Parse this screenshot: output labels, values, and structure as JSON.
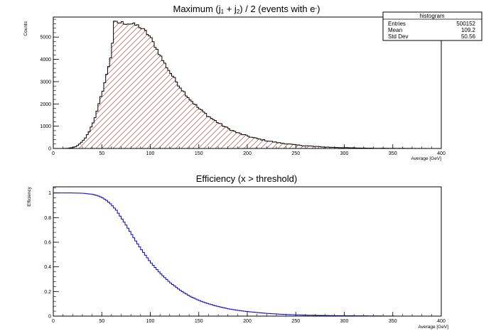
{
  "chart_data": [
    {
      "type": "histogram",
      "title_parts": [
        "Maximum (j",
        "1",
        " + j",
        "2",
        ") / 2 (events with e",
        "-",
        ")"
      ],
      "xlabel": "Average [GeV]",
      "ylabel": "Counts",
      "xlim": [
        0,
        400
      ],
      "ylim": [
        0,
        5900
      ],
      "x_ticks": [
        0,
        50,
        100,
        150,
        200,
        250,
        300,
        350,
        400
      ],
      "y_ticks": [
        0,
        1000,
        2000,
        3000,
        4000,
        5000
      ],
      "bin_width": 2,
      "fill": "hatched",
      "fill_color": "#b22222",
      "line_color": "#000000",
      "stats_box": {
        "title": "histogram",
        "rows": [
          {
            "label": "Entries",
            "value": "500152"
          },
          {
            "label": "Mean",
            "value": "109.2"
          },
          {
            "label": "Std Dev",
            "value": "50.56"
          }
        ]
      },
      "shape_points": [
        [
          10,
          0
        ],
        [
          16,
          10
        ],
        [
          20,
          40
        ],
        [
          25,
          120
        ],
        [
          30,
          300
        ],
        [
          35,
          600
        ],
        [
          40,
          1050
        ],
        [
          45,
          1650
        ],
        [
          50,
          2450
        ],
        [
          55,
          3300
        ],
        [
          60,
          4300
        ],
        [
          62,
          5200
        ],
        [
          63,
          5650
        ],
        [
          70,
          5650
        ],
        [
          80,
          5600
        ],
        [
          88,
          5500
        ],
        [
          95,
          5250
        ],
        [
          100,
          5000
        ],
        [
          105,
          4600
        ],
        [
          110,
          4200
        ],
        [
          115,
          3800
        ],
        [
          120,
          3450
        ],
        [
          130,
          2800
        ],
        [
          140,
          2250
        ],
        [
          150,
          1800
        ],
        [
          160,
          1450
        ],
        [
          170,
          1150
        ],
        [
          180,
          900
        ],
        [
          190,
          700
        ],
        [
          200,
          560
        ],
        [
          210,
          440
        ],
        [
          220,
          350
        ],
        [
          230,
          270
        ],
        [
          240,
          210
        ],
        [
          250,
          160
        ],
        [
          260,
          120
        ],
        [
          270,
          90
        ],
        [
          280,
          65
        ],
        [
          290,
          48
        ],
        [
          300,
          35
        ],
        [
          310,
          25
        ],
        [
          320,
          18
        ],
        [
          330,
          13
        ],
        [
          340,
          9
        ],
        [
          350,
          6
        ],
        [
          360,
          4
        ],
        [
          370,
          3
        ],
        [
          380,
          2
        ],
        [
          390,
          1
        ],
        [
          398,
          1
        ]
      ]
    },
    {
      "type": "line",
      "title": "Efficiency (x > threshold)",
      "xlabel": "Average [GeV]",
      "ylabel": "Efficiency",
      "xlim": [
        0,
        400
      ],
      "ylim": [
        0,
        1.05
      ],
      "x_ticks": [
        0,
        50,
        100,
        150,
        200,
        250,
        300,
        350,
        400
      ],
      "y_ticks": [
        0,
        0.2,
        0.4,
        0.6,
        0.8,
        1
      ],
      "y_tick_labels": [
        "0",
        "0.2",
        "0.4",
        "0.6",
        "0.8",
        "1"
      ],
      "line_color": "#0000cc",
      "x_max_drawn": 360,
      "points": [
        [
          0,
          1.0
        ],
        [
          20,
          1.0
        ],
        [
          30,
          0.998
        ],
        [
          40,
          0.99
        ],
        [
          45,
          0.98
        ],
        [
          50,
          0.965
        ],
        [
          55,
          0.94
        ],
        [
          60,
          0.905
        ],
        [
          65,
          0.86
        ],
        [
          70,
          0.8
        ],
        [
          75,
          0.74
        ],
        [
          80,
          0.675
        ],
        [
          85,
          0.61
        ],
        [
          90,
          0.55
        ],
        [
          95,
          0.495
        ],
        [
          100,
          0.44
        ],
        [
          110,
          0.35
        ],
        [
          120,
          0.275
        ],
        [
          130,
          0.215
        ],
        [
          140,
          0.165
        ],
        [
          150,
          0.128
        ],
        [
          160,
          0.1
        ],
        [
          170,
          0.078
        ],
        [
          180,
          0.06
        ],
        [
          190,
          0.047
        ],
        [
          200,
          0.037
        ],
        [
          220,
          0.022
        ],
        [
          240,
          0.013
        ],
        [
          260,
          0.008
        ],
        [
          280,
          0.005
        ],
        [
          300,
          0.003
        ],
        [
          320,
          0.002
        ],
        [
          340,
          0.001
        ],
        [
          360,
          0.0
        ]
      ]
    }
  ]
}
